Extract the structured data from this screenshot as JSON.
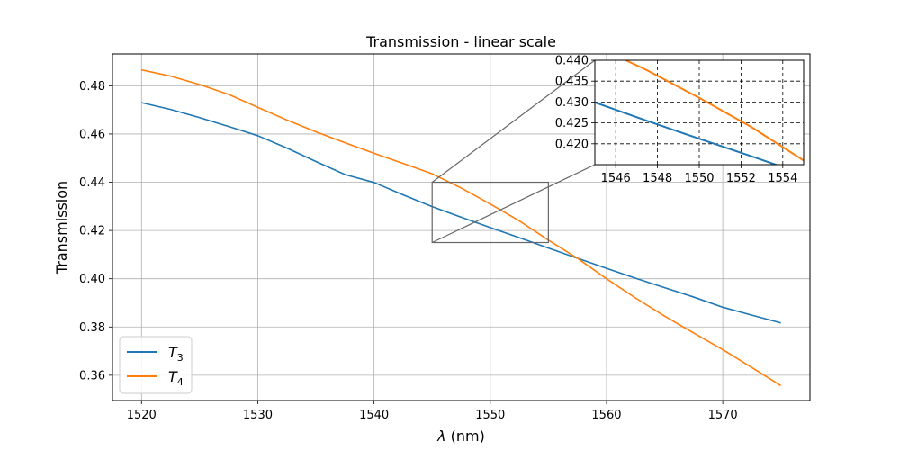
{
  "chart_data": {
    "type": "line",
    "title": "Transmission - linear scale",
    "xlabel_symbol": "λ",
    "xlabel_unit": " (nm)",
    "ylabel": "Transmission",
    "xlim": [
      1517.5,
      1577.5
    ],
    "ylim": [
      0.3495,
      0.4932
    ],
    "xticks": [
      1520,
      1530,
      1540,
      1550,
      1560,
      1570
    ],
    "yticks": [
      0.36,
      0.38,
      0.4,
      0.42,
      0.44,
      0.46,
      0.48
    ],
    "ytick_labels": [
      "0.36",
      "0.38",
      "0.40",
      "0.42",
      "0.44",
      "0.46",
      "0.48"
    ],
    "grid": true,
    "legend_position": "lower-left",
    "series": [
      {
        "name": "T",
        "subscript": "3",
        "color": "#1f77b4",
        "x": [
          1520,
          1522.5,
          1525,
          1527.5,
          1530,
          1532.5,
          1535,
          1537.5,
          1540,
          1542.5,
          1545,
          1547.5,
          1550,
          1552.5,
          1555,
          1557.5,
          1560,
          1562.5,
          1565,
          1567.5,
          1570,
          1572.5,
          1575
        ],
        "y": [
          0.473,
          0.4702,
          0.4668,
          0.4631,
          0.4593,
          0.4542,
          0.4486,
          0.4432,
          0.4399,
          0.4348,
          0.4299,
          0.4255,
          0.4212,
          0.417,
          0.4127,
          0.4085,
          0.4043,
          0.4002,
          0.3963,
          0.3924,
          0.3882,
          0.3849,
          0.3817
        ]
      },
      {
        "name": "T",
        "subscript": "4",
        "color": "#ff7f0e",
        "x": [
          1520,
          1522.5,
          1525,
          1527.5,
          1530,
          1532.5,
          1535,
          1537.5,
          1540,
          1542.5,
          1545,
          1547.5,
          1550,
          1552.5,
          1555,
          1557.5,
          1560,
          1562.5,
          1565,
          1567.5,
          1570,
          1572.5,
          1575
        ],
        "y": [
          0.4866,
          0.484,
          0.4805,
          0.4764,
          0.4711,
          0.4658,
          0.4609,
          0.4564,
          0.452,
          0.4478,
          0.4435,
          0.4376,
          0.431,
          0.424,
          0.416,
          0.4085,
          0.4,
          0.392,
          0.3845,
          0.3775,
          0.3706,
          0.3632,
          0.3557
        ]
      }
    ],
    "inset": {
      "xlim": [
        1545,
        1555
      ],
      "ylim": [
        0.415,
        0.44
      ],
      "xticks": [
        1546,
        1548,
        1550,
        1552,
        1554
      ],
      "yticks": [
        0.42,
        0.425,
        0.43,
        0.435,
        0.44
      ],
      "ytick_labels": [
        "0.420",
        "0.425",
        "0.430",
        "0.435",
        "0.440"
      ],
      "grid": "dashed"
    }
  }
}
